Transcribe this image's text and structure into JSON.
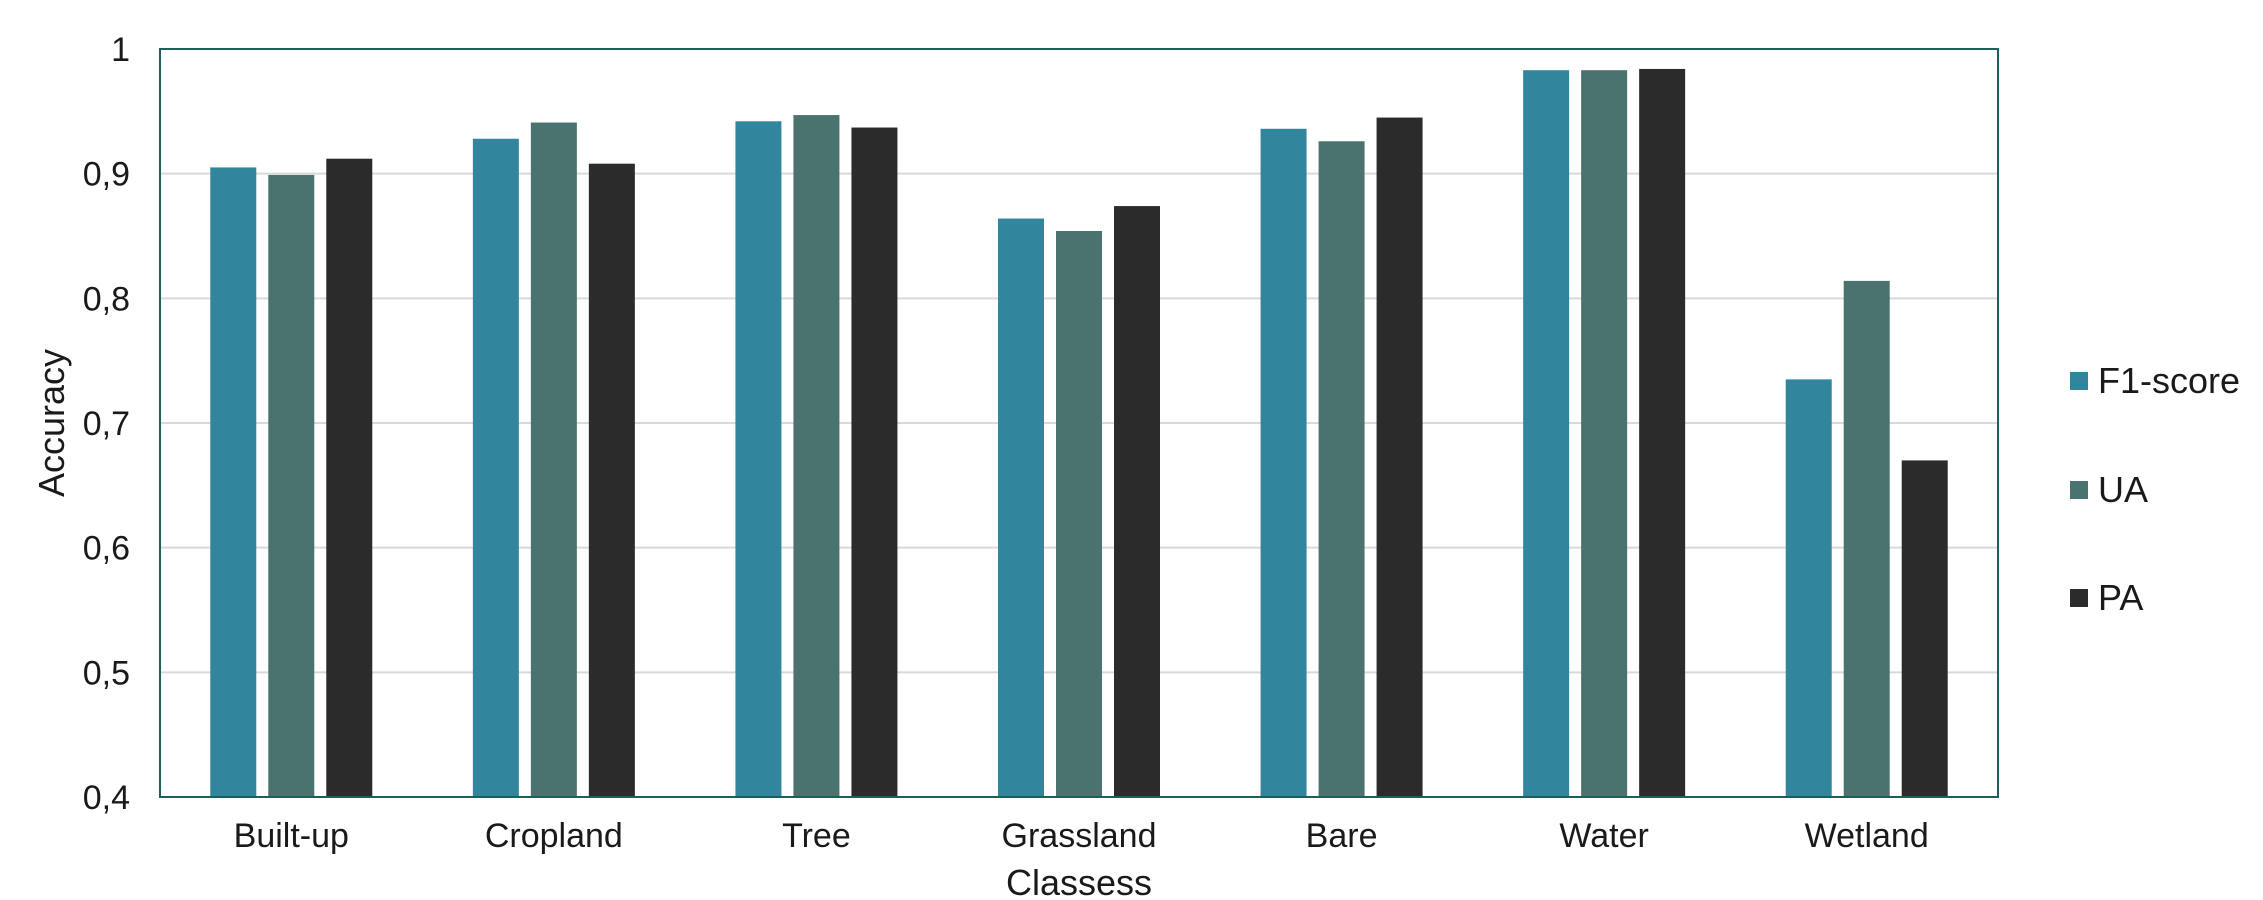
{
  "chart_data": {
    "type": "bar",
    "title": "",
    "xlabel": "Classess",
    "ylabel": "Accuracy",
    "ylim": [
      0.4,
      1
    ],
    "yticks": [
      "0,4",
      "0,5",
      "0,6",
      "0,7",
      "0,8",
      "0,9",
      "1"
    ],
    "grid": true,
    "legend_position": "right",
    "categories": [
      "Built-up",
      "Cropland",
      "Tree",
      "Grassland",
      "Bare",
      "Water",
      "Wetland"
    ],
    "series": [
      {
        "name": "F1-score",
        "color": "#31869e",
        "values": [
          0.905,
          0.928,
          0.942,
          0.864,
          0.936,
          0.983,
          0.735
        ]
      },
      {
        "name": "UA",
        "color": "#4a726e",
        "values": [
          0.899,
          0.941,
          0.947,
          0.854,
          0.926,
          0.983,
          0.814
        ]
      },
      {
        "name": "PA",
        "color": "#2b2b2b",
        "values": [
          0.912,
          0.908,
          0.937,
          0.874,
          0.945,
          0.984,
          0.67
        ]
      }
    ]
  }
}
